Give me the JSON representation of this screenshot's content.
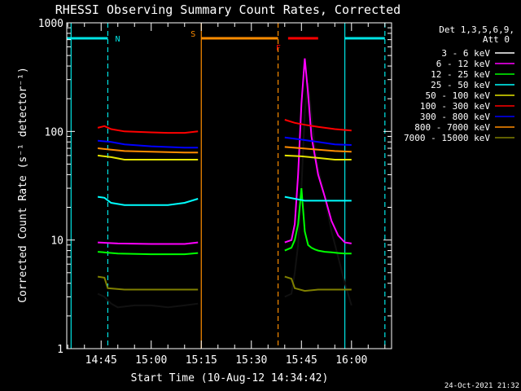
{
  "chart_data": {
    "type": "line",
    "title": "RHESSI Observing Summary Count Rates, Corrected",
    "xlabel": "Start Time (10-Aug-12 14:34:42)",
    "ylabel": "Corrected Count Rate (s⁻¹ detector⁻¹)",
    "y_scale": "log",
    "ylim": [
      1,
      1000
    ],
    "xlim": [
      "14:34:42",
      "16:12:00"
    ],
    "y_ticks": [
      "1",
      "10",
      "100",
      "1000"
    ],
    "x_ticks": [
      "14:45",
      "15:00",
      "15:15",
      "15:30",
      "15:45",
      "16:00"
    ],
    "legend_header": [
      "Det 1,3,5,6,9,",
      "Att 0"
    ],
    "legend_position": "top-right",
    "footer_date": "24-Oct-2021 21:32",
    "bands": [
      {
        "label": "N",
        "name": "night",
        "color": "#00e5e5",
        "segments": [
          [
            "14:34:42",
            "14:47:00"
          ],
          [
            "15:58:00",
            "16:10:00"
          ]
        ]
      },
      {
        "label": "S",
        "name": "SAA",
        "color": "#ff8c00",
        "segments": [
          [
            "15:15:00",
            "15:38:00"
          ]
        ]
      },
      {
        "label": "F",
        "name": "flare",
        "color": "#ff0000",
        "segments": [
          [
            "15:41:00",
            "15:50:00"
          ]
        ]
      }
    ],
    "interval_lines": [
      {
        "time": "14:36:00",
        "color": "#00e5e5"
      },
      {
        "time": "14:47:00",
        "color": "#00e5e5",
        "dashed": true
      },
      {
        "time": "15:15:00",
        "color": "#ff8c00"
      },
      {
        "time": "15:38:00",
        "color": "#ff8c00",
        "dashed": true
      },
      {
        "time": "15:58:00",
        "color": "#00e5e5"
      },
      {
        "time": "16:10:00",
        "color": "#00e5e5",
        "dashed": true
      }
    ],
    "series": [
      {
        "name": "3 - 6 keV",
        "color": "#000000",
        "x": [
          "14:44",
          "14:46",
          "14:48",
          "14:50",
          "14:55",
          "15:00",
          "15:05",
          "15:10",
          "15:14",
          "15:40",
          "15:42",
          "15:43",
          "15:44",
          "15:45",
          "15:46",
          "15:47",
          "15:48",
          "15:49",
          "15:50",
          "15:52",
          "15:54",
          "15:56",
          "15:58",
          "16:00"
        ],
        "y": [
          3.2,
          3.0,
          2.6,
          2.4,
          2.5,
          2.5,
          2.4,
          2.5,
          2.6,
          3.0,
          3.2,
          5,
          9,
          30,
          150,
          280,
          140,
          70,
          45,
          25,
          12,
          7,
          4,
          2.5
        ]
      },
      {
        "name": "6 - 12 keV",
        "color": "#ff00ff",
        "x": [
          "14:44",
          "14:50",
          "15:00",
          "15:10",
          "15:14",
          "15:40",
          "15:42",
          "15:43",
          "15:44",
          "15:45",
          "15:46",
          "15:47",
          "15:48",
          "15:49",
          "15:50",
          "15:52",
          "15:54",
          "15:56",
          "15:58",
          "16:00"
        ],
        "y": [
          9.5,
          9.3,
          9.2,
          9.2,
          9.5,
          9.5,
          10,
          14,
          40,
          180,
          470,
          220,
          90,
          60,
          40,
          25,
          15,
          11,
          9.5,
          9.3
        ]
      },
      {
        "name": "12 - 25 keV",
        "color": "#00ff00",
        "x": [
          "14:44",
          "14:50",
          "15:00",
          "15:10",
          "15:14",
          "15:40",
          "15:42",
          "15:43",
          "15:44",
          "15:45",
          "15:46",
          "15:47",
          "15:48",
          "15:49",
          "15:50",
          "15:52",
          "15:54",
          "15:56",
          "15:58",
          "16:00"
        ],
        "y": [
          7.8,
          7.5,
          7.4,
          7.4,
          7.6,
          8.0,
          8.5,
          10,
          14,
          30,
          12,
          9,
          8.5,
          8.2,
          8.0,
          7.8,
          7.7,
          7.6,
          7.5,
          7.5
        ]
      },
      {
        "name": "25 - 50 keV",
        "color": "#00ffff",
        "x": [
          "14:44",
          "14:46",
          "14:48",
          "14:52",
          "15:00",
          "15:05",
          "15:10",
          "15:14",
          "15:40",
          "15:43",
          "15:46",
          "15:50",
          "15:55",
          "16:00"
        ],
        "y": [
          25,
          24.5,
          22,
          21,
          21,
          21,
          22,
          24,
          25,
          24,
          23,
          23,
          23,
          23
        ]
      },
      {
        "name": "50 - 100 keV",
        "color": "#e5e500",
        "x": [
          "14:44",
          "14:48",
          "14:52",
          "15:00",
          "15:10",
          "15:14",
          "15:40",
          "15:45",
          "15:50",
          "15:55",
          "16:00"
        ],
        "y": [
          60,
          58,
          55,
          55,
          55,
          55,
          60,
          59,
          57,
          55,
          55
        ]
      },
      {
        "name": "100 - 300 keV",
        "color": "#ff0000",
        "x": [
          "14:44",
          "14:46",
          "14:48",
          "14:52",
          "15:00",
          "15:05",
          "15:10",
          "15:14",
          "15:40",
          "15:43",
          "15:46",
          "15:50",
          "15:55",
          "16:00"
        ],
        "y": [
          108,
          112,
          105,
          100,
          98,
          97,
          97,
          100,
          128,
          120,
          115,
          110,
          105,
          102
        ]
      },
      {
        "name": "300 - 800 keV",
        "color": "#0000ff",
        "x": [
          "14:44",
          "14:48",
          "14:52",
          "15:00",
          "15:10",
          "15:14",
          "15:40",
          "15:45",
          "15:50",
          "15:55",
          "16:00"
        ],
        "y": [
          82,
          80,
          76,
          73,
          71,
          71,
          88,
          84,
          80,
          76,
          75
        ]
      },
      {
        "name": "800 - 7000 keV",
        "color": "#ff8c00",
        "x": [
          "14:44",
          "14:48",
          "14:52",
          "15:00",
          "15:10",
          "15:14",
          "15:40",
          "15:45",
          "15:50",
          "15:55",
          "16:00"
        ],
        "y": [
          70,
          68,
          66,
          65,
          64,
          64,
          72,
          70,
          68,
          66,
          65
        ]
      },
      {
        "name": "7000 - 15000 keV",
        "color": "#808000",
        "x": [
          "14:44",
          "14:46",
          "14:47",
          "14:52",
          "15:00",
          "15:10",
          "15:14",
          "15:40",
          "15:42",
          "15:43",
          "15:46",
          "15:50",
          "15:55",
          "16:00"
        ],
        "y": [
          4.6,
          4.5,
          3.6,
          3.5,
          3.5,
          3.5,
          3.5,
          4.6,
          4.4,
          3.6,
          3.4,
          3.5,
          3.5,
          3.5
        ]
      }
    ]
  }
}
